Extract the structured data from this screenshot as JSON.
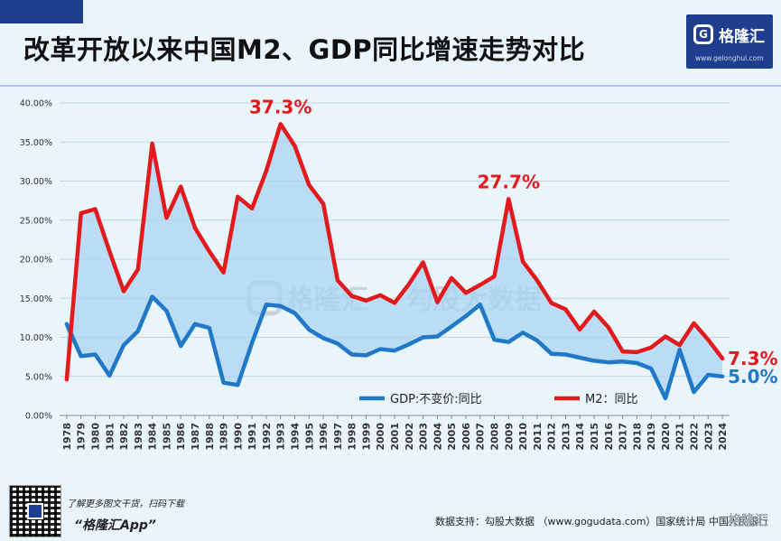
{
  "title": "改革开放以来中国M2、GDP同比增速走势对比",
  "logo": {
    "name": "格隆汇",
    "url": "www.gelonghui.com"
  },
  "watermark": {
    "left": "格隆汇",
    "right": "勾股大数据"
  },
  "footer": {
    "tagline": "了解更多图文干货，扫码下载",
    "app": "“格隆汇App”",
    "source": "数据支持：勾股大数据 （www.gogudata.com）国家统计局 中国人民银行",
    "corner_watermark": "格隆汇"
  },
  "chart_data": {
    "type": "line",
    "title": "改革开放以来中国M2、GDP同比增速走势对比",
    "x": [
      "1978",
      "1979",
      "1980",
      "1981",
      "1982",
      "1983",
      "1984",
      "1985",
      "1986",
      "1987",
      "1988",
      "1989",
      "1990",
      "1991",
      "1992",
      "1993",
      "1994",
      "1995",
      "1996",
      "1997",
      "1998",
      "1999",
      "2000",
      "2001",
      "2002",
      "2003",
      "2004",
      "2005",
      "2006",
      "2007",
      "2008",
      "2009",
      "2010",
      "2011",
      "2012",
      "2013",
      "2014",
      "2015",
      "2016",
      "2017",
      "2018",
      "2019",
      "2020",
      "2021",
      "2022",
      "2023",
      "2024"
    ],
    "ylim": [
      0,
      40
    ],
    "yticks": [
      "0.00%",
      "5.00%",
      "10.00%",
      "15.00%",
      "20.00%",
      "25.00%",
      "30.00%",
      "35.00%",
      "40.00%"
    ],
    "grid": true,
    "fill_between": true,
    "legend_position": "bottom-right",
    "series": [
      {
        "name": "GDP:不变价:同比",
        "color": "#1f78c8",
        "values": [
          11.7,
          7.6,
          7.8,
          5.1,
          9.0,
          10.8,
          15.2,
          13.4,
          8.9,
          11.7,
          11.2,
          4.2,
          3.9,
          9.3,
          14.2,
          14.0,
          13.1,
          11.0,
          9.9,
          9.2,
          7.8,
          7.7,
          8.5,
          8.3,
          9.1,
          10.0,
          10.1,
          11.4,
          12.7,
          14.2,
          9.7,
          9.4,
          10.6,
          9.6,
          7.9,
          7.8,
          7.4,
          7.0,
          6.8,
          6.9,
          6.7,
          6.0,
          2.2,
          8.4,
          3.0,
          5.2,
          5.0
        ]
      },
      {
        "name": "M2：同比",
        "color": "#e31a1c",
        "values": [
          4.6,
          25.9,
          26.4,
          21.0,
          15.9,
          18.7,
          34.8,
          25.3,
          29.3,
          24.0,
          21.0,
          18.3,
          28.0,
          26.5,
          31.3,
          37.3,
          34.5,
          29.5,
          27.1,
          17.3,
          15.3,
          14.7,
          15.4,
          14.4,
          16.8,
          19.6,
          14.5,
          17.6,
          15.7,
          16.7,
          17.8,
          27.7,
          19.7,
          17.3,
          14.4,
          13.6,
          11.0,
          13.3,
          11.3,
          8.2,
          8.1,
          8.7,
          10.1,
          9.0,
          11.8,
          9.7,
          7.3
        ]
      }
    ],
    "annotations": [
      {
        "text": "37.3%",
        "series": 1,
        "index": 15
      },
      {
        "text": "27.7%",
        "series": 1,
        "index": 31
      },
      {
        "text": "7.3%",
        "series": 1,
        "index": 46
      },
      {
        "text": "5.0%",
        "series": 0,
        "index": 46
      }
    ]
  }
}
